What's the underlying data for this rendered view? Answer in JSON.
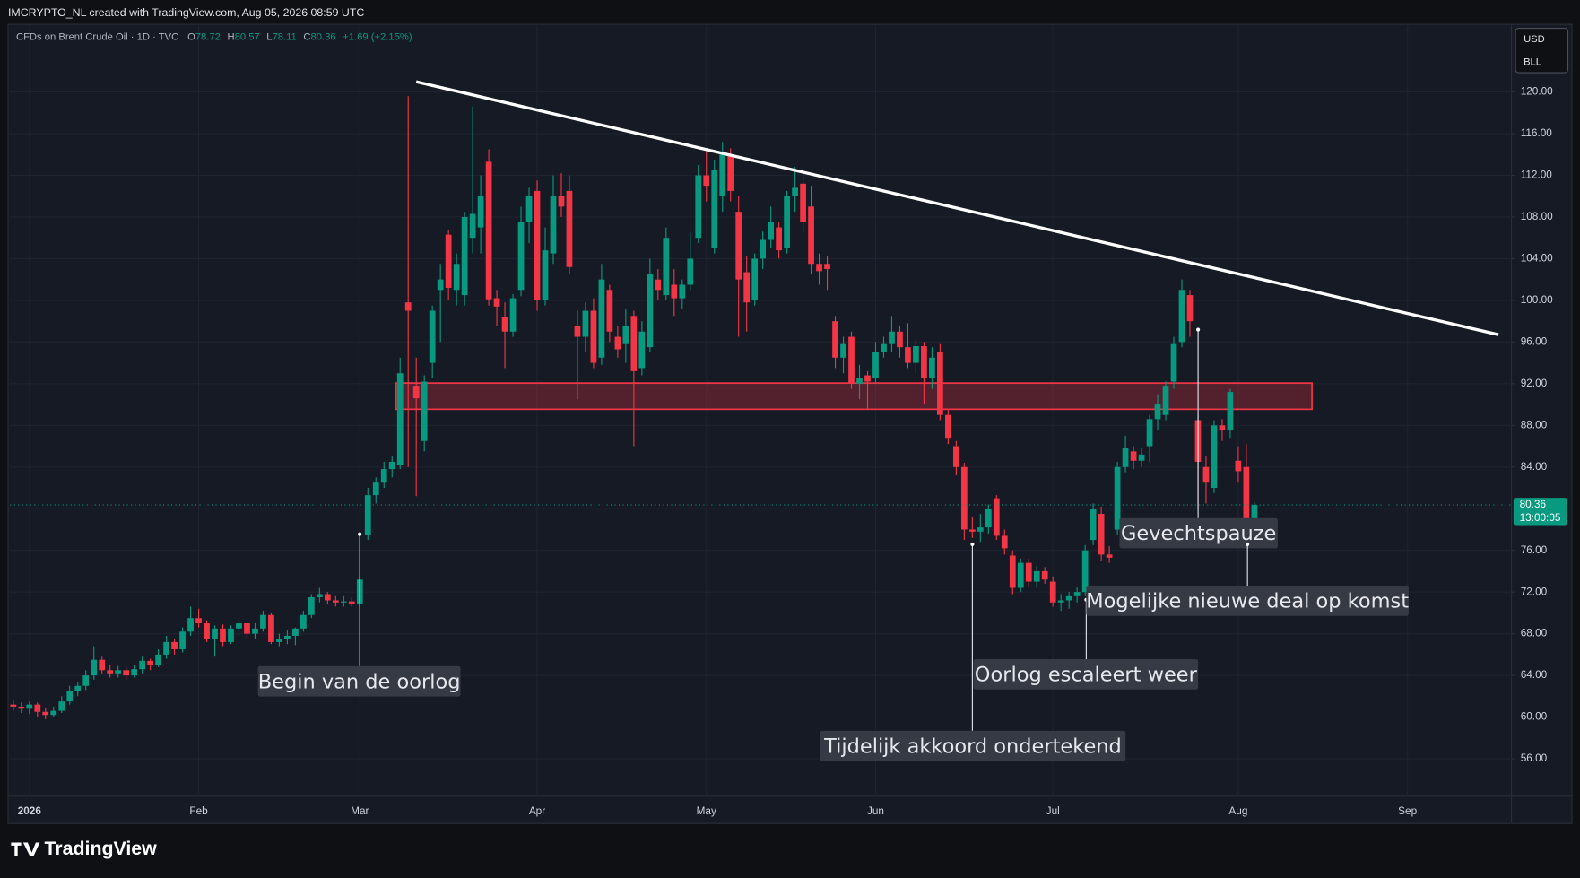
{
  "header": {
    "attribution": "IMCRYPTO_NL created with TradingView.com, Aug 05, 2026 08:59 UTC",
    "logo": "TradingView"
  },
  "chart_data": {
    "type": "candlestick",
    "title": "CFDs on Brent Crude Oil · 1D · TVC",
    "ohlc_labels": [
      "O",
      "H",
      "L",
      "C"
    ],
    "change_label": "+1.69 (+2.15%)",
    "currency": "USD",
    "unit": "BLL",
    "up_color": "#089981",
    "down_color": "#f23645",
    "last_price": 80.36,
    "countdown": "13:00:05",
    "candles": {
      "open": [
        61.2,
        61.0,
        60.8,
        61.2,
        60.5,
        60.2,
        60.6,
        61.5,
        62.5,
        63.0,
        64.0,
        65.5,
        64.5,
        64.2,
        64.5,
        64.0,
        64.6,
        65.4,
        65.0,
        66.0,
        67.2,
        66.5,
        68.2,
        69.5,
        69.0,
        67.5,
        68.5,
        67.2,
        68.5,
        69.0,
        68.0,
        68.5,
        69.8,
        67.2,
        67.5,
        67.8,
        68.5,
        69.8,
        71.5,
        71.8,
        71.2,
        71.0,
        71.1,
        70.9,
        77.5,
        81.3,
        82.5,
        83.8,
        84.2,
        99.8,
        91.8,
        86.5,
        94.0,
        101.0,
        106.3,
        101.0,
        100.5,
        106.0,
        107.0,
        113.3,
        100.2,
        98.4,
        97.0,
        101.0,
        107.5,
        110.5,
        100.0,
        104.5,
        110.0,
        110.5,
        97.5,
        96.5,
        99.0,
        94.5,
        101.0,
        96.5,
        95.8,
        98.5,
        93.5,
        95.5,
        102.0,
        100.5,
        101.5,
        100.2,
        101.5,
        106.0,
        112.0,
        105.0,
        110.0,
        114.0,
        108.5,
        102.7,
        100.0,
        104.0,
        105.8,
        107.0,
        105.0,
        110.0,
        111.2,
        109.0,
        103.5,
        103.5,
        98.0,
        94.5,
        96.5,
        92.0,
        92.8,
        92.5,
        95.0,
        95.8,
        97.0,
        95.5,
        94.0,
        95.6,
        92.5,
        95.0,
        89.0,
        86.0,
        84.0,
        78.0,
        77.8,
        78.2,
        81.0,
        77.4,
        75.5,
        72.4,
        74.8,
        73.0,
        74.0,
        73.0,
        71.0,
        71.2,
        71.6,
        72.0,
        77.0,
        79.5,
        75.6,
        78.0,
        84.0,
        85.5,
        84.6,
        86.0,
        88.6,
        89.0,
        92.2,
        96.0,
        100.5,
        88.5,
        84.0,
        82.0,
        88.0,
        87.5,
        84.6,
        84.0,
        78.72
      ],
      "high": [
        61.6,
        61.4,
        61.5,
        61.4,
        60.9,
        61.0,
        62.0,
        63.0,
        63.4,
        64.5,
        66.8,
        65.8,
        65.0,
        64.9,
        64.8,
        65.0,
        65.8,
        65.6,
        66.5,
        67.8,
        67.5,
        68.6,
        70.6,
        70.4,
        69.3,
        68.8,
        68.9,
        68.8,
        69.4,
        69.2,
        69.0,
        70.2,
        70.0,
        68.0,
        68.3,
        68.6,
        70.2,
        71.8,
        72.4,
        72.0,
        71.6,
        71.6,
        71.5,
        73.6,
        82.0,
        83.0,
        84.5,
        85.0,
        94.5,
        119.6,
        94.5,
        92.8,
        99.5,
        103.5,
        106.8,
        104.5,
        108.5,
        118.6,
        112.0,
        114.5,
        101.0,
        99.8,
        100.6,
        109.0,
        110.8,
        111.5,
        107.0,
        112.0,
        112.2,
        112.0,
        99.0,
        99.8,
        100.2,
        103.5,
        101.5,
        97.5,
        99.2,
        99.0,
        98.0,
        104.0,
        103.0,
        107.0,
        103.0,
        102.0,
        106.5,
        113.0,
        114.5,
        113.5,
        115.2,
        114.6,
        110.0,
        104.2,
        104.5,
        106.6,
        109.0,
        107.5,
        110.5,
        112.8,
        112.0,
        111.0,
        104.5,
        104.2,
        98.5,
        96.5,
        97.0,
        93.8,
        93.2,
        96.0,
        96.5,
        98.5,
        97.5,
        97.8,
        96.2,
        96.0,
        95.5,
        95.8,
        89.5,
        86.5,
        84.4,
        79.2,
        79.5,
        80.4,
        81.3,
        78.0,
        76.0,
        75.2,
        75.2,
        74.5,
        74.4,
        73.5,
        71.8,
        72.0,
        72.5,
        76.5,
        80.5,
        80.2,
        76.4,
        84.5,
        87.0,
        86.0,
        85.8,
        89.0,
        91.0,
        92.2,
        96.5,
        102.0,
        101.0,
        89.0,
        85.0,
        88.5,
        88.6,
        91.5,
        86.0,
        86.2,
        80.57
      ],
      "low": [
        60.6,
        60.4,
        60.3,
        60.0,
        59.8,
        60.0,
        60.4,
        61.2,
        62.0,
        62.6,
        63.6,
        64.2,
        63.8,
        63.8,
        63.6,
        63.8,
        64.2,
        64.5,
        64.8,
        65.6,
        66.0,
        66.2,
        67.8,
        68.6,
        67.2,
        65.8,
        66.8,
        67.0,
        67.8,
        67.6,
        67.5,
        68.2,
        67.0,
        66.8,
        67.0,
        66.9,
        68.2,
        69.5,
        71.0,
        70.8,
        70.6,
        70.6,
        70.6,
        70.5,
        77.0,
        80.5,
        82.0,
        83.0,
        83.8,
        84.0,
        81.2,
        85.5,
        92.5,
        96.0,
        100.0,
        99.5,
        99.5,
        104.5,
        104.5,
        99.5,
        97.5,
        93.5,
        96.5,
        100.4,
        105.5,
        99.0,
        99.5,
        103.5,
        108.0,
        102.5,
        90.5,
        95.0,
        93.5,
        93.8,
        96.0,
        94.5,
        94.0,
        86.0,
        92.8,
        95.0,
        100.0,
        100.0,
        98.5,
        99.2,
        101.0,
        105.5,
        109.5,
        104.5,
        108.5,
        109.5,
        96.5,
        97.0,
        99.5,
        103.0,
        105.0,
        104.0,
        104.5,
        108.5,
        106.5,
        102.5,
        101.5,
        101.0,
        93.5,
        93.0,
        91.5,
        90.5,
        89.5,
        92.0,
        94.5,
        95.0,
        94.5,
        93.5,
        93.0,
        90.0,
        91.5,
        88.5,
        86.2,
        83.2,
        77.0,
        77.2,
        76.8,
        77.6,
        77.0,
        75.6,
        71.8,
        72.0,
        72.5,
        72.4,
        72.8,
        70.6,
        70.2,
        70.4,
        71.0,
        71.6,
        76.5,
        75.0,
        74.8,
        77.5,
        83.5,
        83.8,
        84.0,
        84.5,
        87.5,
        88.5,
        91.5,
        95.5,
        96.5,
        80.0,
        80.5,
        81.5,
        86.5,
        86.8,
        82.5,
        78.0,
        78.11
      ],
      "close": [
        61.0,
        60.8,
        61.2,
        60.5,
        60.2,
        60.6,
        61.5,
        62.5,
        63.0,
        64.0,
        65.5,
        64.5,
        64.2,
        64.5,
        64.0,
        64.6,
        65.4,
        65.0,
        66.0,
        67.2,
        66.5,
        68.2,
        69.5,
        69.0,
        67.5,
        68.5,
        67.2,
        68.5,
        69.0,
        68.0,
        68.5,
        69.8,
        67.2,
        67.5,
        67.8,
        68.5,
        69.8,
        71.5,
        71.8,
        71.2,
        71.0,
        71.1,
        70.9,
        73.2,
        81.3,
        82.5,
        83.8,
        84.5,
        93.0,
        99.0,
        90.6,
        92.2,
        99.0,
        102.0,
        101.2,
        103.5,
        108.0,
        108.3,
        110.0,
        100.1,
        99.4,
        97.0,
        100.2,
        107.5,
        110.0,
        100.0,
        104.8,
        110.0,
        109.0,
        103.2,
        96.5,
        99.0,
        94.0,
        102.0,
        97.0,
        95.3,
        97.5,
        93.2,
        97.0,
        102.5,
        101.0,
        106.0,
        100.2,
        101.5,
        104.0,
        112.0,
        111.0,
        112.5,
        114.0,
        110.5,
        102.0,
        99.8,
        104.0,
        105.8,
        107.5,
        104.8,
        110.0,
        110.8,
        107.5,
        103.5,
        102.8,
        103.0,
        94.5,
        95.8,
        92.0,
        92.5,
        92.2,
        95.0,
        95.8,
        97.0,
        95.5,
        94.0,
        95.6,
        92.5,
        94.5,
        89.0,
        86.8,
        84.0,
        78.0,
        77.8,
        78.2,
        80.0,
        77.4,
        76.2,
        72.4,
        74.8,
        73.0,
        74.0,
        73.2,
        71.0,
        71.2,
        71.6,
        72.0,
        76.0,
        80.0,
        75.6,
        75.3,
        84.0,
        85.8,
        84.6,
        85.2,
        88.6,
        90.0,
        91.8,
        95.8,
        101.0,
        98.0,
        84.5,
        82.5,
        88.0,
        87.5,
        91.2,
        83.6,
        78.7,
        80.36
      ]
    },
    "xlim": [
      -0.4,
      185.9
    ],
    "xticks": [
      {
        "value": 2,
        "label": "2026"
      },
      {
        "value": 23,
        "label": "Feb"
      },
      {
        "value": 43,
        "label": "Mar"
      },
      {
        "value": 65,
        "label": "Apr"
      },
      {
        "value": 86,
        "label": "May"
      },
      {
        "value": 107,
        "label": "Jun"
      },
      {
        "value": 129,
        "label": "Jul"
      },
      {
        "value": 152,
        "label": "Aug"
      },
      {
        "value": 173,
        "label": "Sep"
      }
    ],
    "ylim": [
      52.4,
      126.4
    ],
    "yticks": [
      {
        "value": 56,
        "label": "56.00"
      },
      {
        "value": 60,
        "label": "60.00"
      },
      {
        "value": 64,
        "label": "64.00"
      },
      {
        "value": 68,
        "label": "68.00"
      },
      {
        "value": 72,
        "label": "72.00"
      },
      {
        "value": 76,
        "label": "76.00"
      },
      {
        "value": 80,
        "label": "80.00"
      },
      {
        "value": 84,
        "label": "84.00"
      },
      {
        "value": 88,
        "label": "88.00"
      },
      {
        "value": 92,
        "label": "92.00"
      },
      {
        "value": 96,
        "label": "96.00"
      },
      {
        "value": 100,
        "label": "100.00"
      },
      {
        "value": 104,
        "label": "104.00"
      },
      {
        "value": 108,
        "label": "108.00"
      },
      {
        "value": 112,
        "label": "112.00"
      },
      {
        "value": 116,
        "label": "116.00"
      },
      {
        "value": 120,
        "label": "120.00"
      }
    ],
    "grid": true,
    "annotations": [
      "Begin van de oorlog",
      "Tijdelijk akkoord ondertekend",
      "Oorlog escaleert weer",
      "Gevechtspauze",
      "Mogelijke nieuwe deal op komst"
    ]
  }
}
